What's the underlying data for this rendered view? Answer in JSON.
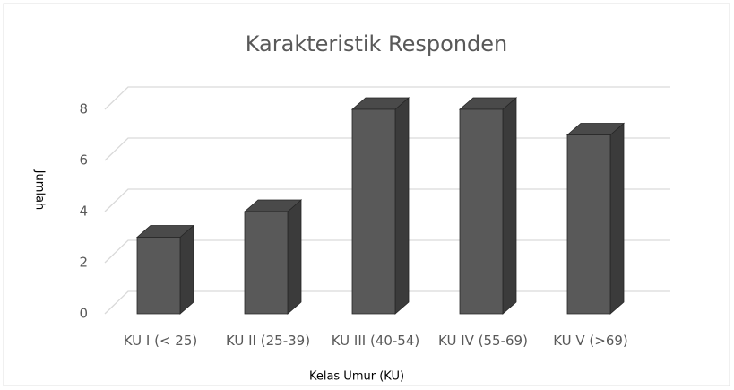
{
  "chart_data": {
    "type": "bar3d",
    "title": "Karakteristik Responden",
    "x_label": "Kelas Umur (KU)",
    "y_label": "Jumlah",
    "categories": [
      "KU I  (< 25)",
      "KU II (25-39)",
      "KU III (40-54)",
      "KU IV (55-69)",
      "KU V (>69)"
    ],
    "values": [
      3,
      4,
      8,
      8,
      7
    ],
    "color": "#595959",
    "ylim": [
      0,
      8
    ],
    "yticks": [
      0,
      2,
      4,
      6,
      8
    ],
    "grid": true
  }
}
